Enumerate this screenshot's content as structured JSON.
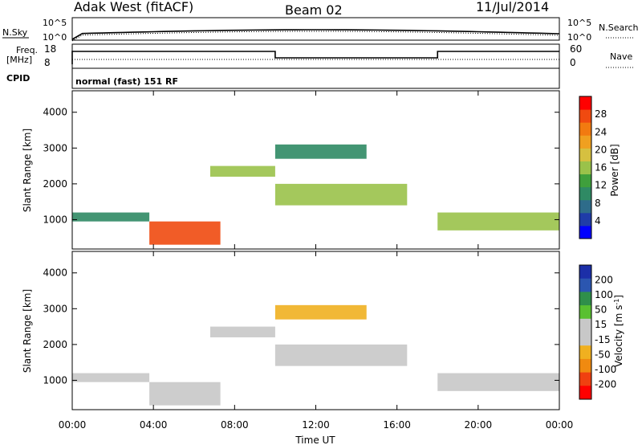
{
  "header": {
    "station": "Adak West (fitACF)",
    "beam": "Beam 02",
    "date": "11/Jul/2014"
  },
  "top_panels": {
    "nsky_label": "N.Sky",
    "nsearch_label": "N.Search",
    "nsky_ticks": [
      "10^5",
      "10^0"
    ],
    "nsearch_ticks": [
      "10^5",
      "10^0"
    ],
    "freq_label_1": "Freq.",
    "freq_label_2": "[MHz]",
    "freq_ticks": [
      "18",
      "8"
    ],
    "nave_label": "Nave",
    "nave_ticks": [
      "60",
      "0"
    ],
    "cpid_label": "CPID",
    "cpid_text": "normal (fast) 151 RF"
  },
  "colors": {
    "power_scale": [
      "#0000ff",
      "#1f3ca8",
      "#2e6c8a",
      "#2f8a64",
      "#3f9f3c",
      "#9ac24a",
      "#d6c040",
      "#f0a020",
      "#f27a10",
      "#f04a10",
      "#ff0000"
    ],
    "velocity_scale": [
      "#1c2fa8",
      "#2b56b0",
      "#2f8f4a",
      "#59c030",
      "#c8c8c8",
      "#c8c8c8",
      "#f0b020",
      "#f08a10",
      "#f04010",
      "#ff0000"
    ]
  },
  "chart_data": [
    {
      "type": "heatmap",
      "name": "power",
      "xlabel": "Time UT",
      "ylabel": "Slant Range [km]",
      "ylim": [
        180,
        4600
      ],
      "xlim": [
        "00:00",
        "24:00"
      ],
      "yticks": [
        "1000",
        "2000",
        "3000",
        "4000"
      ],
      "xticks": [
        "00:00",
        "04:00",
        "08:00",
        "12:00",
        "16:00",
        "20:00",
        "00:00"
      ],
      "colorbar_label": "Power [dB]",
      "colorbar_ticks": [
        "4",
        "8",
        "12",
        "16",
        "20",
        "24",
        "28"
      ],
      "regions": [
        {
          "t0": 3.8,
          "t1": 7.3,
          "r0": 300,
          "r1": 950,
          "level": 28
        },
        {
          "t0": 0.0,
          "t1": 3.8,
          "r0": 950,
          "r1": 1200,
          "level": 8
        },
        {
          "t0": 6.8,
          "t1": 10.0,
          "r0": 2200,
          "r1": 2500,
          "level": 16
        },
        {
          "t0": 10.0,
          "t1": 16.5,
          "r0": 1400,
          "r1": 2000,
          "level": 16
        },
        {
          "t0": 10.0,
          "t1": 14.5,
          "r0": 2700,
          "r1": 3100,
          "level": 8
        },
        {
          "t0": 18.0,
          "t1": 24.0,
          "r0": 700,
          "r1": 1200,
          "level": 16
        }
      ]
    },
    {
      "type": "heatmap",
      "name": "velocity",
      "xlabel": "Time UT",
      "ylabel": "Slant Range [km]",
      "ylim": [
        180,
        4600
      ],
      "xlim": [
        "00:00",
        "24:00"
      ],
      "yticks": [
        "1000",
        "2000",
        "3000",
        "4000"
      ],
      "xticks": [
        "00:00",
        "04:00",
        "08:00",
        "12:00",
        "16:00",
        "20:00",
        "00:00"
      ],
      "colorbar_label": "Velocity [m s^-1]",
      "colorbar_ticks": [
        "200",
        "100",
        "50",
        "15",
        "-15",
        "-50",
        "-100",
        "-200"
      ],
      "regions": [
        {
          "t0": 3.8,
          "t1": 7.3,
          "r0": 300,
          "r1": 950,
          "v": 0
        },
        {
          "t0": 0.0,
          "t1": 3.8,
          "r0": 950,
          "r1": 1200,
          "v": 0
        },
        {
          "t0": 6.8,
          "t1": 10.0,
          "r0": 2200,
          "r1": 2500,
          "v": 0
        },
        {
          "t0": 10.0,
          "t1": 16.5,
          "r0": 1400,
          "r1": 2000,
          "v": 0
        },
        {
          "t0": 10.0,
          "t1": 14.5,
          "r0": 2700,
          "r1": 3100,
          "v": -30
        },
        {
          "t0": 18.0,
          "t1": 24.0,
          "r0": 700,
          "r1": 1200,
          "v": 0
        }
      ]
    }
  ]
}
